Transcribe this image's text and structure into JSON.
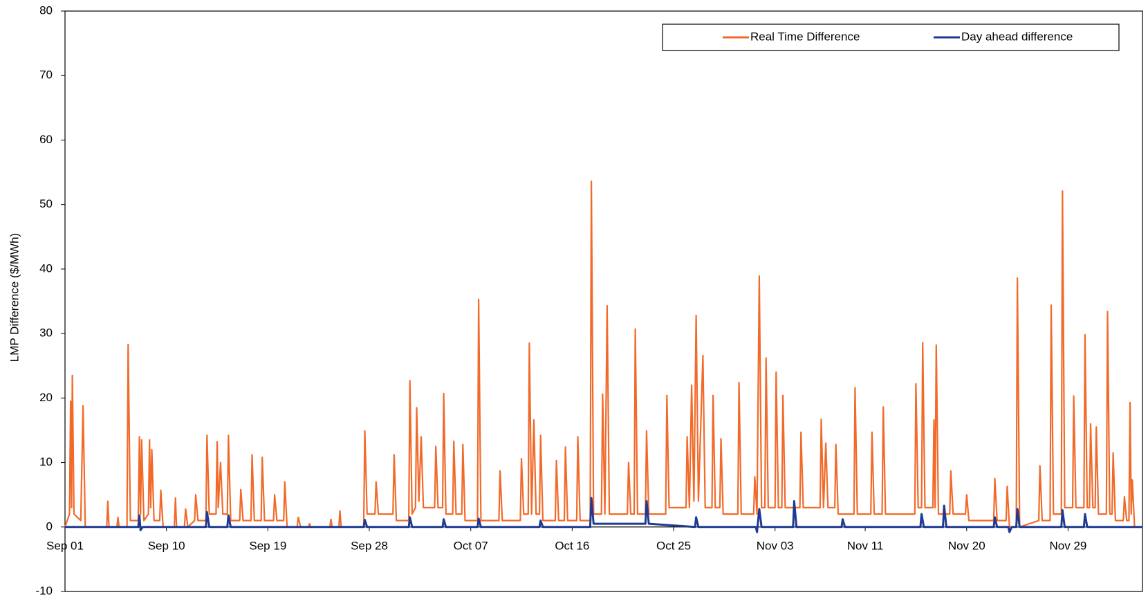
{
  "chart_data": {
    "type": "line",
    "y_label": "LMP Difference ($/MWh)",
    "ylim": [
      -10,
      80
    ],
    "yticks": [
      -10,
      0,
      10,
      20,
      30,
      40,
      50,
      60,
      70,
      80
    ],
    "xlim": [
      0,
      95.6
    ],
    "xticks": [
      {
        "value": 0,
        "label": "Sep 01"
      },
      {
        "value": 9,
        "label": "Sep 10"
      },
      {
        "value": 18,
        "label": "Sep 19"
      },
      {
        "value": 27,
        "label": "Sep 28"
      },
      {
        "value": 36,
        "label": "Oct 07"
      },
      {
        "value": 45,
        "label": "Oct 16"
      },
      {
        "value": 54,
        "label": "Oct 25"
      },
      {
        "value": 63,
        "label": "Nov 03"
      },
      {
        "value": 71,
        "label": "Nov 11"
      },
      {
        "value": 80,
        "label": "Nov 20"
      },
      {
        "value": 89,
        "label": "Nov 29"
      }
    ],
    "legend": "top-right",
    "series": [
      {
        "name": "Real Time Difference",
        "color": "#f26a2a",
        "x": [
          0,
          0.4,
          0.5,
          0.58,
          0.65,
          0.8,
          1.4,
          1.6,
          1.8,
          3.7,
          3.8,
          3.9,
          4.6,
          4.7,
          4.8,
          5.5,
          5.6,
          5.8,
          6.5,
          6.6,
          6.7,
          6.8,
          7.0,
          7.4,
          7.5,
          7.6,
          7.7,
          7.9,
          8.4,
          8.5,
          8.7,
          9.7,
          9.8,
          9.9,
          10.6,
          10.7,
          10.9,
          11.5,
          11.6,
          11.8,
          12.5,
          12.6,
          12.8,
          13.4,
          13.5,
          13.6,
          13.8,
          14.0,
          14.4,
          14.5,
          14.7,
          15.5,
          15.6,
          15.8,
          16.5,
          16.6,
          16.8,
          17.4,
          17.5,
          17.7,
          18.5,
          18.6,
          18.8,
          19.4,
          19.5,
          19.7,
          20.6,
          20.7,
          20.9,
          21.6,
          21.7,
          21.8,
          23.5,
          23.6,
          23.7,
          24.3,
          24.4,
          24.5,
          26.5,
          26.6,
          26.8,
          27.5,
          27.6,
          27.8,
          29.1,
          29.2,
          29.4,
          30.5,
          30.6,
          30.8,
          31.1,
          31.2,
          31.4,
          31.6,
          31.8,
          32.8,
          32.9,
          33.1,
          33.5,
          33.6,
          33.8,
          34.4,
          34.5,
          34.7,
          35.2,
          35.3,
          35.5,
          36.6,
          36.7,
          36.9,
          38.5,
          38.6,
          38.8,
          40.4,
          40.5,
          40.7,
          41.1,
          41.2,
          41.4,
          41.6,
          41.8,
          42.1,
          42.2,
          42.4,
          43.5,
          43.6,
          43.8,
          44.3,
          44.4,
          44.6,
          45.4,
          45.5,
          45.7,
          46.6,
          46.7,
          46.9,
          47.6,
          47.7,
          47.9,
          48.1,
          48.3,
          49.9,
          50,
          50.2,
          50.5,
          50.6,
          50.8,
          51.5,
          51.6,
          51.8,
          53.3,
          53.4,
          53.6,
          55.1,
          55.2,
          55.4,
          55.6,
          55.8,
          56.0,
          56.2,
          56.6,
          56.8,
          57.4,
          57.5,
          57.7,
          58.1,
          58.2,
          58.4,
          59.7,
          59.8,
          60.0,
          61.1,
          61.2,
          61.4,
          61.6,
          61.8,
          62.1,
          62.2,
          62.4,
          63.0,
          63.1,
          63.3,
          63.6,
          63.7,
          63.9,
          65.2,
          65.3,
          65.5,
          67.0,
          67.1,
          67.3,
          67.5,
          67.7,
          68.3,
          68.4,
          68.6,
          70.0,
          70.1,
          70.3,
          71.5,
          71.6,
          71.8,
          72.5,
          72.6,
          72.8,
          75.4,
          75.5,
          75.7,
          76.0,
          76.1,
          76.3,
          77.0,
          77.1,
          77.2,
          77.3,
          77.5,
          78.5,
          78.6,
          78.8,
          79.9,
          80,
          80.2,
          82.4,
          82.5,
          82.7,
          83.5,
          83.6,
          83.8,
          84.4,
          84.5,
          84.7,
          86.4,
          86.5,
          86.7,
          87.4,
          87.5,
          87.7,
          88.4,
          88.5,
          88.7,
          89.4,
          89.5,
          89.7,
          90.4,
          90.5,
          90.7,
          90.9,
          91.0,
          91.2,
          91.4,
          91.5,
          91.7,
          92.4,
          92.5,
          92.7,
          92.9,
          93.0,
          93.2,
          93.9,
          94.0,
          94.2,
          94.4,
          94.5,
          94.6,
          94.7,
          94.9,
          95.6
        ],
        "values": [
          0,
          2,
          19.5,
          3,
          23.5,
          2,
          1,
          18.8,
          0,
          0,
          4,
          0,
          0,
          1.5,
          0,
          0,
          28.3,
          1,
          1,
          14,
          2,
          13.5,
          1,
          2,
          13.5,
          3,
          12,
          1,
          1,
          5.7,
          0,
          0,
          4.5,
          0,
          0,
          2.8,
          0,
          1,
          5,
          1,
          1,
          14.2,
          2,
          2,
          13.2,
          3,
          10,
          2,
          2,
          14.2,
          1,
          1,
          5.8,
          1,
          1,
          11.2,
          1,
          1,
          10.8,
          1,
          1,
          5,
          1,
          1,
          7,
          0,
          0,
          1.5,
          0,
          0,
          0.5,
          0,
          0,
          1.2,
          0,
          0,
          2.5,
          0,
          0,
          14.9,
          2,
          2,
          7,
          2,
          2,
          11.2,
          1,
          1,
          22.7,
          2,
          3,
          18.5,
          4,
          14,
          3,
          3,
          12.5,
          3,
          3,
          20.7,
          2,
          2,
          13.3,
          2,
          2,
          12.8,
          1,
          1,
          35.3,
          1,
          1,
          8.7,
          1,
          1,
          10.6,
          2,
          2,
          28.5,
          2,
          16.6,
          2,
          2,
          14.2,
          1,
          1,
          10.3,
          1,
          1,
          12.4,
          1,
          1,
          14,
          1,
          1,
          53.6,
          2,
          2,
          20.6,
          2,
          34.3,
          2,
          2,
          10,
          2,
          2,
          30.7,
          2,
          2,
          14.9,
          2,
          2,
          20.4,
          3,
          3,
          14,
          3,
          22,
          4,
          32.8,
          4,
          26.6,
          3,
          3,
          20.4,
          3,
          3,
          13.7,
          2,
          2,
          22.4,
          2,
          2,
          7.8,
          2,
          38.9,
          3,
          3,
          26.2,
          3,
          3,
          24,
          3,
          3,
          20.4,
          3,
          3,
          14.7,
          3,
          3,
          16.7,
          3,
          13,
          3,
          3,
          12.8,
          2,
          2,
          21.6,
          2,
          2,
          14.7,
          2,
          2,
          18.6,
          2,
          2,
          22.2,
          3,
          3,
          28.6,
          3,
          3,
          16.6,
          3,
          28.2,
          2,
          2,
          8.7,
          2,
          2,
          5,
          1,
          1,
          7.5,
          1,
          1,
          6.3,
          0,
          0,
          38.6,
          0,
          1,
          9.5,
          1,
          1,
          34.4,
          2,
          2,
          52.1,
          3,
          3,
          20.3,
          3,
          3,
          29.8,
          3,
          3,
          16,
          3,
          3,
          15.5,
          2,
          2,
          33.4,
          2,
          2,
          11.5,
          1,
          1,
          4.7,
          1,
          1,
          19.3,
          2,
          7.3,
          0,
          0
        ]
      },
      {
        "name": "Day ahead difference",
        "color": "#1f3a93",
        "x": [
          0,
          6.5,
          6.6,
          6.7,
          6.9,
          12.5,
          12.6,
          12.8,
          14.4,
          14.5,
          14.7,
          26.5,
          26.6,
          26.8,
          30.5,
          30.6,
          30.8,
          33.5,
          33.6,
          33.8,
          36.6,
          36.7,
          36.9,
          42.1,
          42.2,
          42.4,
          46.6,
          46.7,
          46.9,
          51.5,
          51.6,
          51.8,
          55.9,
          56.0,
          56.2,
          61.3,
          61.4,
          61.6,
          61.8,
          64.6,
          64.7,
          64.9,
          68.9,
          69.0,
          69.2,
          75.9,
          76.0,
          76.2,
          77.9,
          78.0,
          78.2,
          82.4,
          82.5,
          82.7,
          83.7,
          83.8,
          84.0,
          84.4,
          84.5,
          84.7,
          88.4,
          88.5,
          88.7,
          90.4,
          90.5,
          90.7,
          95.6
        ],
        "values": [
          0,
          0,
          1.8,
          -0.5,
          0,
          0,
          2.3,
          0,
          0,
          1.8,
          0,
          0,
          1.1,
          0,
          0,
          1.5,
          0,
          0,
          1.2,
          0,
          0,
          1.3,
          0,
          0,
          1,
          0,
          0,
          4.5,
          0.5,
          0.5,
          4,
          0.5,
          0,
          1.5,
          0,
          0,
          -0.8,
          2.8,
          0,
          0,
          4,
          0,
          0,
          1.2,
          0,
          0,
          2,
          0,
          0,
          3.3,
          0,
          0,
          1.5,
          0,
          0,
          -0.8,
          0,
          0,
          2.8,
          0,
          0,
          2.6,
          0,
          0,
          2,
          0,
          0
        ]
      }
    ]
  }
}
